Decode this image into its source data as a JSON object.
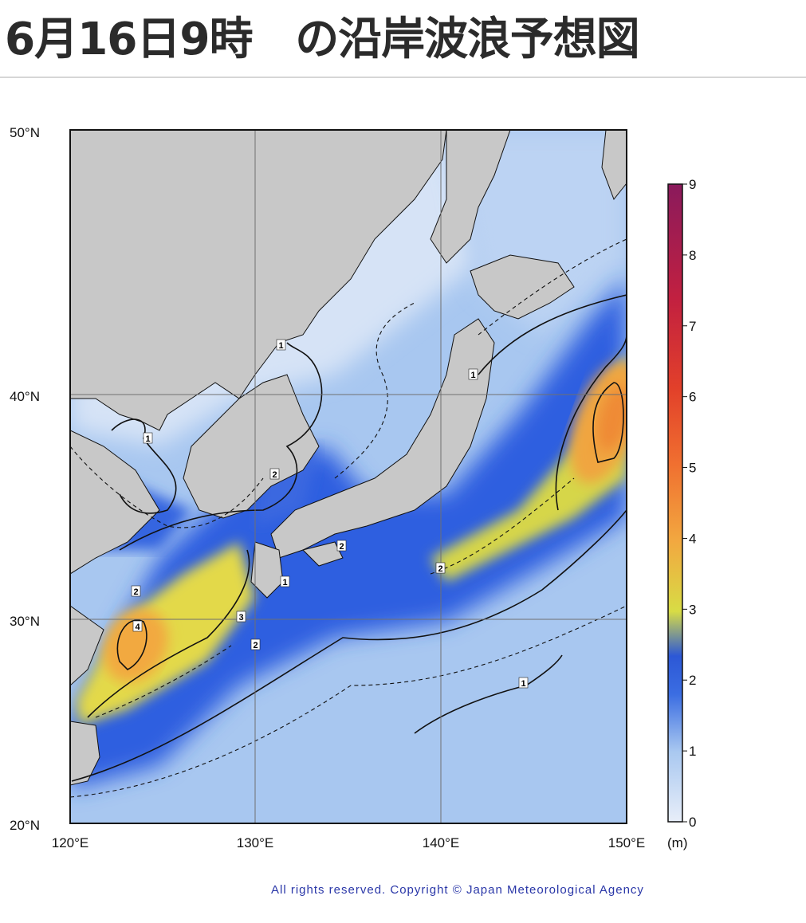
{
  "title": "6月16日9時　の沿岸波浪予想図",
  "map": {
    "lat_labels": [
      "50°N",
      "40°N",
      "30°N",
      "20°N"
    ],
    "lon_labels": [
      "120°E",
      "130°E",
      "140°E",
      "150°E"
    ],
    "contour_labels": [
      "1",
      "1",
      "1",
      "1",
      "1",
      "2",
      "2",
      "2",
      "2",
      "3",
      "4",
      "2"
    ]
  },
  "colorbar": {
    "ticks": [
      "9",
      "8",
      "7",
      "6",
      "5",
      "4",
      "3",
      "2",
      "1",
      "0"
    ],
    "unit": "(m)",
    "colors": [
      "#e8eef9",
      "#9fc3ef",
      "#2d5ee0",
      "#d8da40",
      "#f0a540",
      "#ea5a25",
      "#c21f3a",
      "#8c1a5a"
    ]
  },
  "copyright": "All rights reserved. Copyright © Japan Meteorological Agency"
}
